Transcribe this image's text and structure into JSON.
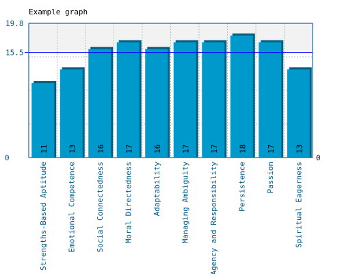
{
  "chart_data": {
    "type": "bar",
    "title": "Example graph",
    "categories": [
      "Strengths-Based Aptitude",
      "Emotional Competence",
      "Social Connectedness",
      "Moral Directedness",
      "Adaptability",
      "Managing Ambiguity",
      "Agency and Responsibility",
      "Persistence",
      "Passion",
      "Spiritual Eagerness"
    ],
    "values": [
      11,
      13,
      16,
      17,
      16,
      17,
      17,
      18,
      17,
      13
    ],
    "ylim": [
      0,
      19.8
    ],
    "y_tick_labels": [
      "0",
      "15.5",
      "19.8"
    ],
    "right_axis_label": "0",
    "reference_line": {
      "value": 15.5,
      "label": "15.5"
    },
    "grid": true,
    "colors": {
      "bar": "#0099cc",
      "bar_shadow": "#005f80",
      "axis": "#1a6a9a",
      "grid": "#bbbbbb",
      "reference_line": "#0000ff",
      "upper_band": "#f2f2f2",
      "text": "#005c8a",
      "title": "#000000"
    }
  }
}
